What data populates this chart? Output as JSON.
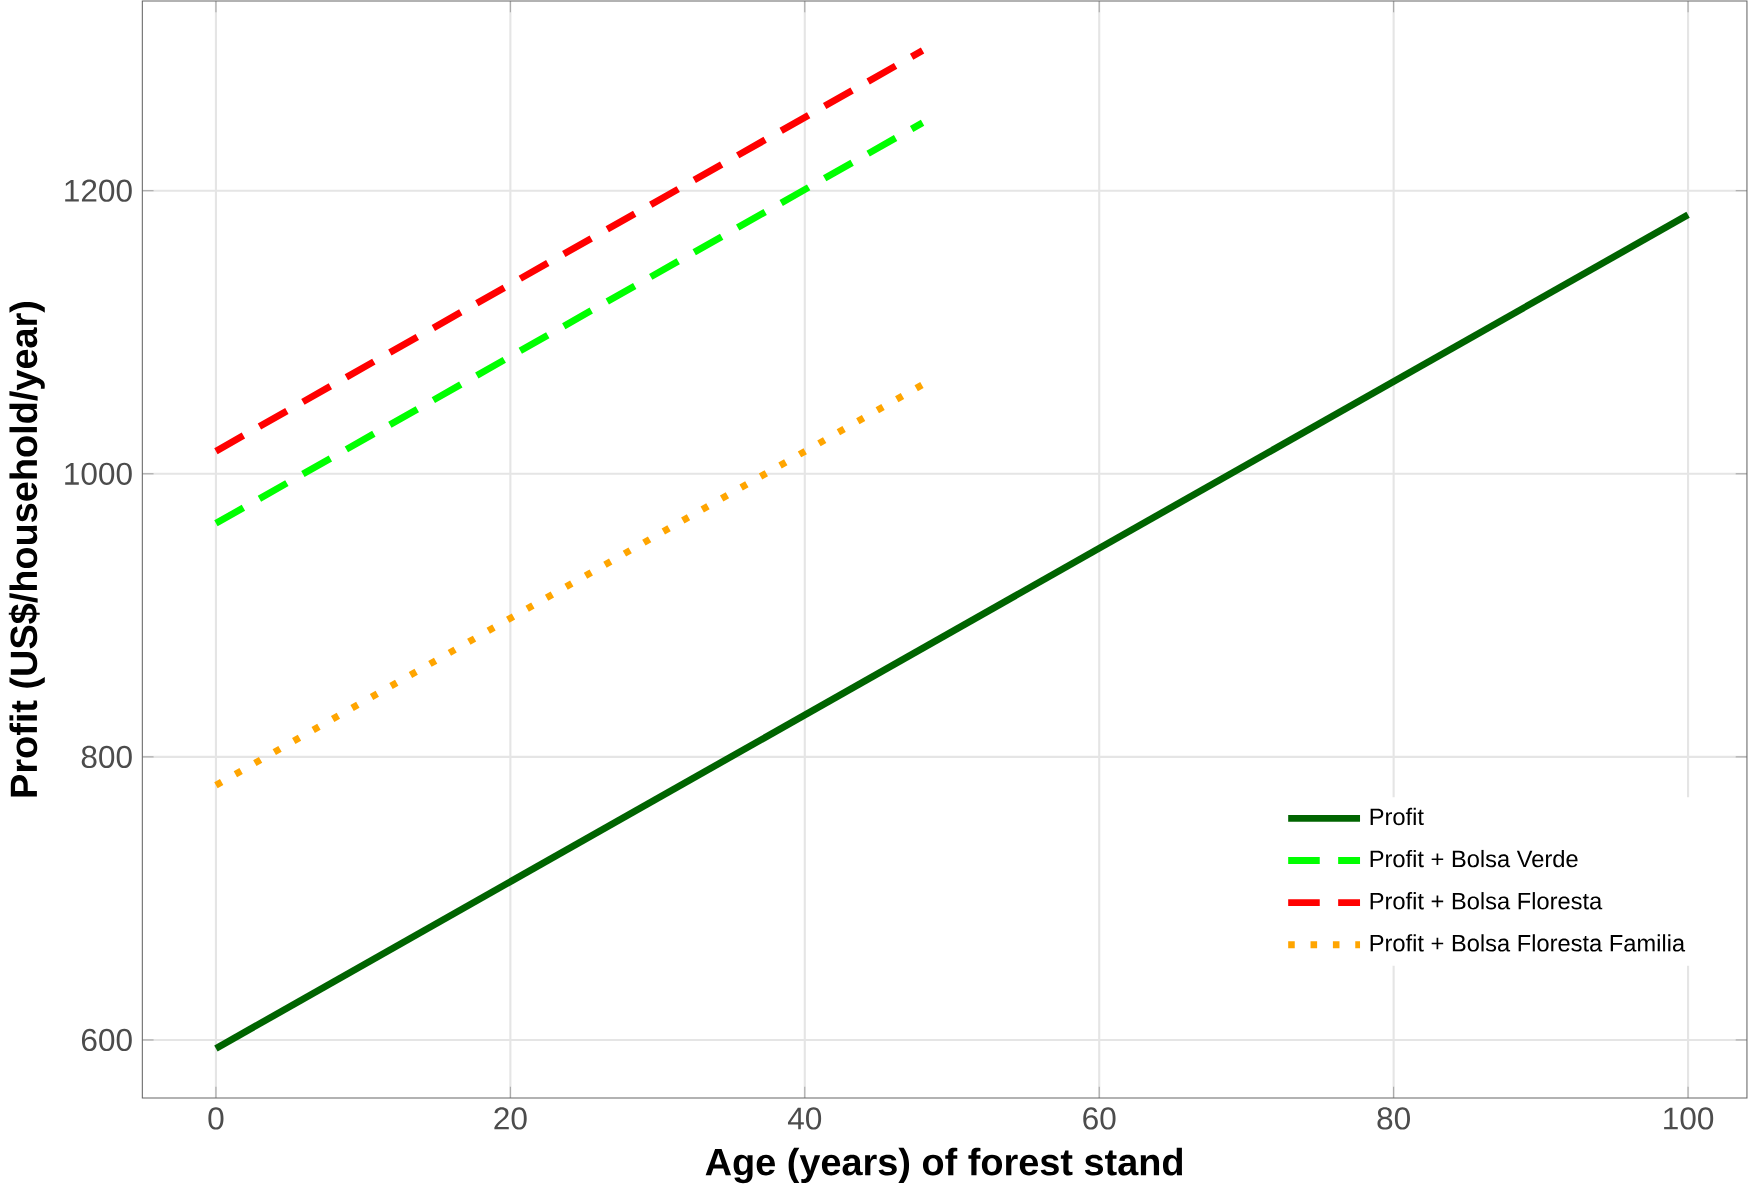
{
  "chart_data": {
    "type": "line",
    "xlabel": "Age (years) of forest stand",
    "ylabel": "Profit (US$/household/year)",
    "xlim": [
      -5,
      104
    ],
    "ylim": [
      559,
      1334
    ],
    "xticks": [
      0,
      20,
      40,
      60,
      80,
      100
    ],
    "yticks": [
      600,
      800,
      1000,
      1200
    ],
    "grid": true,
    "legend": "bottom right",
    "series": [
      {
        "name": "Profit",
        "color": "#006400",
        "x": [
          0,
          100
        ],
        "values": [
          594,
          1183
        ],
        "line_style": "solid"
      },
      {
        "name": "Profit + Bolsa Verde",
        "color": "#00ff00",
        "x": [
          0,
          48
        ],
        "values": [
          965,
          1248
        ],
        "line_style": "dashed"
      },
      {
        "name": "Profit + Bolsa Floresta",
        "color": "#ff0000",
        "x": [
          0,
          48
        ],
        "values": [
          1016,
          1299
        ],
        "line_style": "dashed"
      },
      {
        "name": "Profit + Bolsa Floresta Familia",
        "color": "#ffa500",
        "x": [
          0,
          48
        ],
        "values": [
          780,
          1063
        ],
        "line_style": "dotted"
      }
    ]
  }
}
